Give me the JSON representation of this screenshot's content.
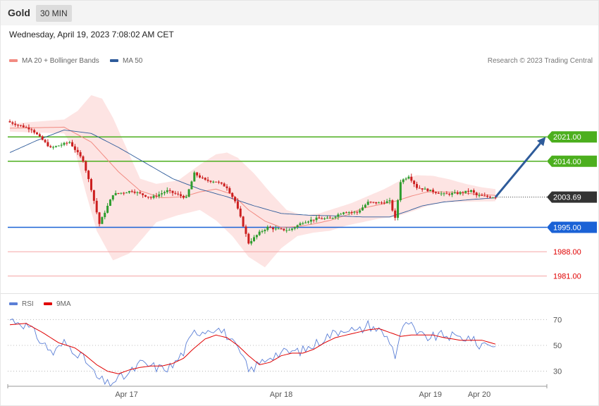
{
  "header": {
    "title": "Gold",
    "interval": "30 MIN"
  },
  "datetime": "Wednesday, April 19, 2023 7:08:02 AM CET",
  "legend": [
    {
      "label": "MA 20 + Bollinger Bands",
      "color": "#f28b82"
    },
    {
      "label": "MA 50",
      "color": "#2e5b9a"
    }
  ],
  "rsi_legend": [
    {
      "label": "RSI",
      "color": "#5b7fd6"
    },
    {
      "label": "9MA",
      "color": "#e00000"
    }
  ],
  "credit": "Research © 2023 Trading Central",
  "chart_data": [
    {
      "type": "candlestick",
      "title": "",
      "ylim": [
        1978.5,
        2033
      ],
      "current_price": "2003.69",
      "levels": [
        {
          "value": 2021.0,
          "label": "2021.00",
          "style": "resistance",
          "color": "#4caf1e"
        },
        {
          "value": 2014.0,
          "label": "2014.00",
          "style": "resistance",
          "color": "#4caf1e"
        },
        {
          "value": 1995.0,
          "label": "1995.00",
          "style": "pivot",
          "color": "#1a62d6"
        },
        {
          "value": 1988.0,
          "label": "1988.00",
          "style": "support",
          "color": "#e00000"
        },
        {
          "value": 1981.0,
          "label": "1981.00",
          "style": "support",
          "color": "#e00000"
        }
      ],
      "x_ticks": [
        "Apr 17",
        "Apr 18",
        "Apr 19",
        "Apr 20"
      ],
      "x_tick_index": [
        43,
        100,
        155,
        173
      ],
      "scenario_arrow": {
        "from_index": 179,
        "from_value": 2003.69,
        "to_index": 198,
        "to_value": 2021.0,
        "color": "#2e5b9a"
      },
      "price_waypoints": [
        [
          0,
          2025.2
        ],
        [
          8,
          2023.2
        ],
        [
          15,
          2017.8
        ],
        [
          22,
          2019.5
        ],
        [
          27,
          2014.2
        ],
        [
          30,
          2006.0
        ],
        [
          33,
          1996.0
        ],
        [
          38,
          2004.5
        ],
        [
          45,
          2005.5
        ],
        [
          52,
          2003.5
        ],
        [
          58,
          2005.5
        ],
        [
          65,
          2003.5
        ],
        [
          68,
          2010.5
        ],
        [
          72,
          2008.5
        ],
        [
          76,
          2008.2
        ],
        [
          80,
          2006.5
        ],
        [
          83,
          2002.5
        ],
        [
          86,
          1995.5
        ],
        [
          88,
          1990.5
        ],
        [
          92,
          1993.5
        ],
        [
          95,
          1995.0
        ],
        [
          98,
          1994.5
        ],
        [
          103,
          1994.2
        ],
        [
          108,
          1996.5
        ],
        [
          113,
          1997.5
        ],
        [
          118,
          1997.5
        ],
        [
          123,
          1999.5
        ],
        [
          128,
          1999.3
        ],
        [
          132,
          2002.2
        ],
        [
          136,
          2002.0
        ],
        [
          140,
          2002.5
        ],
        [
          142,
          1997.5
        ],
        [
          144,
          2008.2
        ],
        [
          147,
          2009.8
        ],
        [
          150,
          2006.5
        ],
        [
          155,
          2005.5
        ],
        [
          160,
          2004.5
        ],
        [
          165,
          2004.8
        ],
        [
          170,
          2005.5
        ],
        [
          172,
          2004.2
        ],
        [
          176,
          2003.8
        ],
        [
          179,
          2003.69
        ]
      ],
      "ma20_waypoints": [
        [
          0,
          2023.5
        ],
        [
          20,
          2023.8
        ],
        [
          30,
          2019.5
        ],
        [
          40,
          2011.0
        ],
        [
          48,
          2005.5
        ],
        [
          56,
          2003.5
        ],
        [
          64,
          2003.8
        ],
        [
          70,
          2005.2
        ],
        [
          76,
          2006.0
        ],
        [
          82,
          2004.5
        ],
        [
          88,
          2000.0
        ],
        [
          94,
          1996.8
        ],
        [
          100,
          1995.0
        ],
        [
          106,
          1995.2
        ],
        [
          112,
          1996.0
        ],
        [
          118,
          1997.0
        ],
        [
          124,
          1998.5
        ],
        [
          130,
          2000.5
        ],
        [
          136,
          2001.5
        ],
        [
          142,
          2002.5
        ],
        [
          148,
          2004.0
        ],
        [
          154,
          2005.2
        ],
        [
          160,
          2005.2
        ],
        [
          166,
          2005.0
        ],
        [
          172,
          2004.5
        ],
        [
          179,
          2004.2
        ]
      ],
      "ma50_waypoints": [
        [
          0,
          2016.5
        ],
        [
          10,
          2020.0
        ],
        [
          20,
          2023.0
        ],
        [
          30,
          2022.0
        ],
        [
          40,
          2018.0
        ],
        [
          50,
          2013.5
        ],
        [
          60,
          2009.0
        ],
        [
          70,
          2006.0
        ],
        [
          80,
          2003.8
        ],
        [
          90,
          2001.2
        ],
        [
          100,
          1999.0
        ],
        [
          110,
          1998.5
        ],
        [
          120,
          1998.3
        ],
        [
          130,
          1998.0
        ],
        [
          140,
          1998.0
        ],
        [
          146,
          1999.5
        ],
        [
          152,
          2001.2
        ],
        [
          160,
          2002.3
        ],
        [
          170,
          2003.0
        ],
        [
          179,
          2003.5
        ]
      ],
      "bb_upper_waypoints": [
        [
          0,
          2024.8
        ],
        [
          20,
          2026.0
        ],
        [
          25,
          2028.5
        ],
        [
          30,
          2033.0
        ],
        [
          34,
          2032.0
        ],
        [
          38,
          2026.5
        ],
        [
          44,
          2016.0
        ],
        [
          48,
          2009.0
        ],
        [
          54,
          2007.5
        ],
        [
          62,
          2008.5
        ],
        [
          70,
          2013.0
        ],
        [
          76,
          2016.0
        ],
        [
          80,
          2016.5
        ],
        [
          84,
          2015.0
        ],
        [
          90,
          2010.5
        ],
        [
          96,
          2005.0
        ],
        [
          102,
          2000.0
        ],
        [
          108,
          1998.5
        ],
        [
          114,
          1999.0
        ],
        [
          120,
          2000.5
        ],
        [
          126,
          2002.0
        ],
        [
          132,
          2004.0
        ],
        [
          138,
          2006.0
        ],
        [
          144,
          2008.5
        ],
        [
          150,
          2010.0
        ],
        [
          156,
          2009.8
        ],
        [
          162,
          2008.8
        ],
        [
          168,
          2007.5
        ],
        [
          174,
          2006.5
        ],
        [
          179,
          2006.0
        ]
      ],
      "bb_lower_waypoints": [
        [
          0,
          2022.5
        ],
        [
          20,
          2022.0
        ],
        [
          24,
          2017.0
        ],
        [
          28,
          2005.0
        ],
        [
          32,
          1994.0
        ],
        [
          38,
          1985.5
        ],
        [
          44,
          1987.5
        ],
        [
          48,
          1991.0
        ],
        [
          54,
          1996.5
        ],
        [
          62,
          1998.5
        ],
        [
          70,
          2000.0
        ],
        [
          76,
          1997.0
        ],
        [
          82,
          1992.5
        ],
        [
          88,
          1986.5
        ],
        [
          94,
          1983.5
        ],
        [
          100,
          1989.0
        ],
        [
          106,
          1992.5
        ],
        [
          112,
          1993.5
        ],
        [
          118,
          1994.0
        ],
        [
          124,
          1995.5
        ],
        [
          130,
          1996.5
        ],
        [
          136,
          1997.5
        ],
        [
          142,
          1998.0
        ],
        [
          148,
          1999.5
        ],
        [
          154,
          2001.2
        ],
        [
          160,
          2002.2
        ],
        [
          166,
          2002.3
        ],
        [
          172,
          2002.4
        ],
        [
          179,
          2002.5
        ]
      ]
    },
    {
      "type": "line",
      "title": "",
      "ylim": [
        20,
        80
      ],
      "y_ticks": [
        70,
        50,
        30
      ],
      "series": [
        {
          "name": "RSI",
          "color": "#5b7fd6",
          "waypoints": [
            [
              0,
              70
            ],
            [
              4,
              68
            ],
            [
              8,
              62
            ],
            [
              12,
              52
            ],
            [
              16,
              44
            ],
            [
              20,
              52
            ],
            [
              24,
              46
            ],
            [
              28,
              38
            ],
            [
              32,
              25
            ],
            [
              36,
              20
            ],
            [
              40,
              24
            ],
            [
              44,
              28
            ],
            [
              48,
              36
            ],
            [
              52,
              34
            ],
            [
              56,
              32
            ],
            [
              60,
              34
            ],
            [
              64,
              45
            ],
            [
              68,
              60
            ],
            [
              72,
              62
            ],
            [
              76,
              64
            ],
            [
              80,
              58
            ],
            [
              84,
              46
            ],
            [
              86,
              40
            ],
            [
              88,
              30
            ],
            [
              92,
              36
            ],
            [
              96,
              42
            ],
            [
              100,
              44
            ],
            [
              104,
              45
            ],
            [
              108,
              46
            ],
            [
              112,
              50
            ],
            [
              116,
              56
            ],
            [
              120,
              60
            ],
            [
              124,
              64
            ],
            [
              128,
              60
            ],
            [
              132,
              66
            ],
            [
              136,
              62
            ],
            [
              140,
              54
            ],
            [
              142,
              42
            ],
            [
              144,
              60
            ],
            [
              147,
              68
            ],
            [
              150,
              58
            ],
            [
              155,
              56
            ],
            [
              160,
              58
            ],
            [
              165,
              56
            ],
            [
              170,
              56
            ],
            [
              172,
              50
            ],
            [
              176,
              52
            ],
            [
              179,
              50
            ]
          ]
        },
        {
          "name": "9MA",
          "color": "#e00000",
          "waypoints": [
            [
              0,
              66
            ],
            [
              6,
              67
            ],
            [
              12,
              60
            ],
            [
              18,
              52
            ],
            [
              24,
              48
            ],
            [
              28,
              42
            ],
            [
              32,
              35
            ],
            [
              36,
              30
            ],
            [
              40,
              28
            ],
            [
              44,
              31
            ],
            [
              48,
              33
            ],
            [
              52,
              34
            ],
            [
              56,
              34
            ],
            [
              60,
              36
            ],
            [
              64,
              40
            ],
            [
              68,
              48
            ],
            [
              72,
              55
            ],
            [
              76,
              58
            ],
            [
              80,
              56
            ],
            [
              84,
              50
            ],
            [
              88,
              42
            ],
            [
              92,
              35
            ],
            [
              96,
              37
            ],
            [
              100,
              42
            ],
            [
              104,
              44
            ],
            [
              108,
              44
            ],
            [
              112,
              47
            ],
            [
              116,
              52
            ],
            [
              120,
              56
            ],
            [
              124,
              58
            ],
            [
              128,
              60
            ],
            [
              132,
              62
            ],
            [
              136,
              63
            ],
            [
              140,
              60
            ],
            [
              144,
              57
            ],
            [
              148,
              58
            ],
            [
              152,
              58
            ],
            [
              156,
              58
            ],
            [
              160,
              56
            ],
            [
              166,
              54
            ],
            [
              170,
              54
            ],
            [
              174,
              54
            ],
            [
              179,
              51
            ]
          ]
        }
      ]
    }
  ]
}
